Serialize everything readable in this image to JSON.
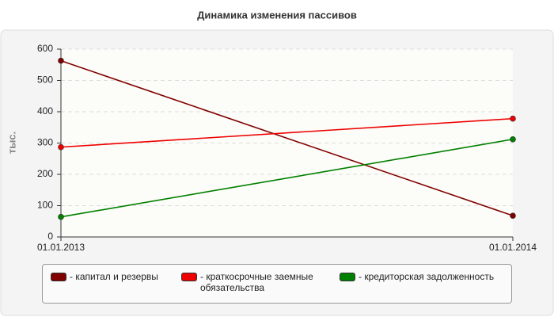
{
  "chart_data": {
    "type": "line",
    "title": "Динамика изменения пассивов",
    "y_label": "тыс.",
    "categories": [
      "01.01.2013",
      "01.01.2014"
    ],
    "series": [
      {
        "name": "- капитал и резервы",
        "color": "#800000",
        "values": [
          563,
          68
        ]
      },
      {
        "name": "- краткосрочные заемные обязательства",
        "color": "#ee0000",
        "values": [
          287,
          378
        ]
      },
      {
        "name": "- кредиторская задолженность",
        "color": "#008000",
        "values": [
          64,
          312
        ]
      }
    ],
    "ylim": [
      0,
      600
    ],
    "yticks": [
      0,
      100,
      200,
      300,
      400,
      500,
      600
    ],
    "grid": true
  }
}
